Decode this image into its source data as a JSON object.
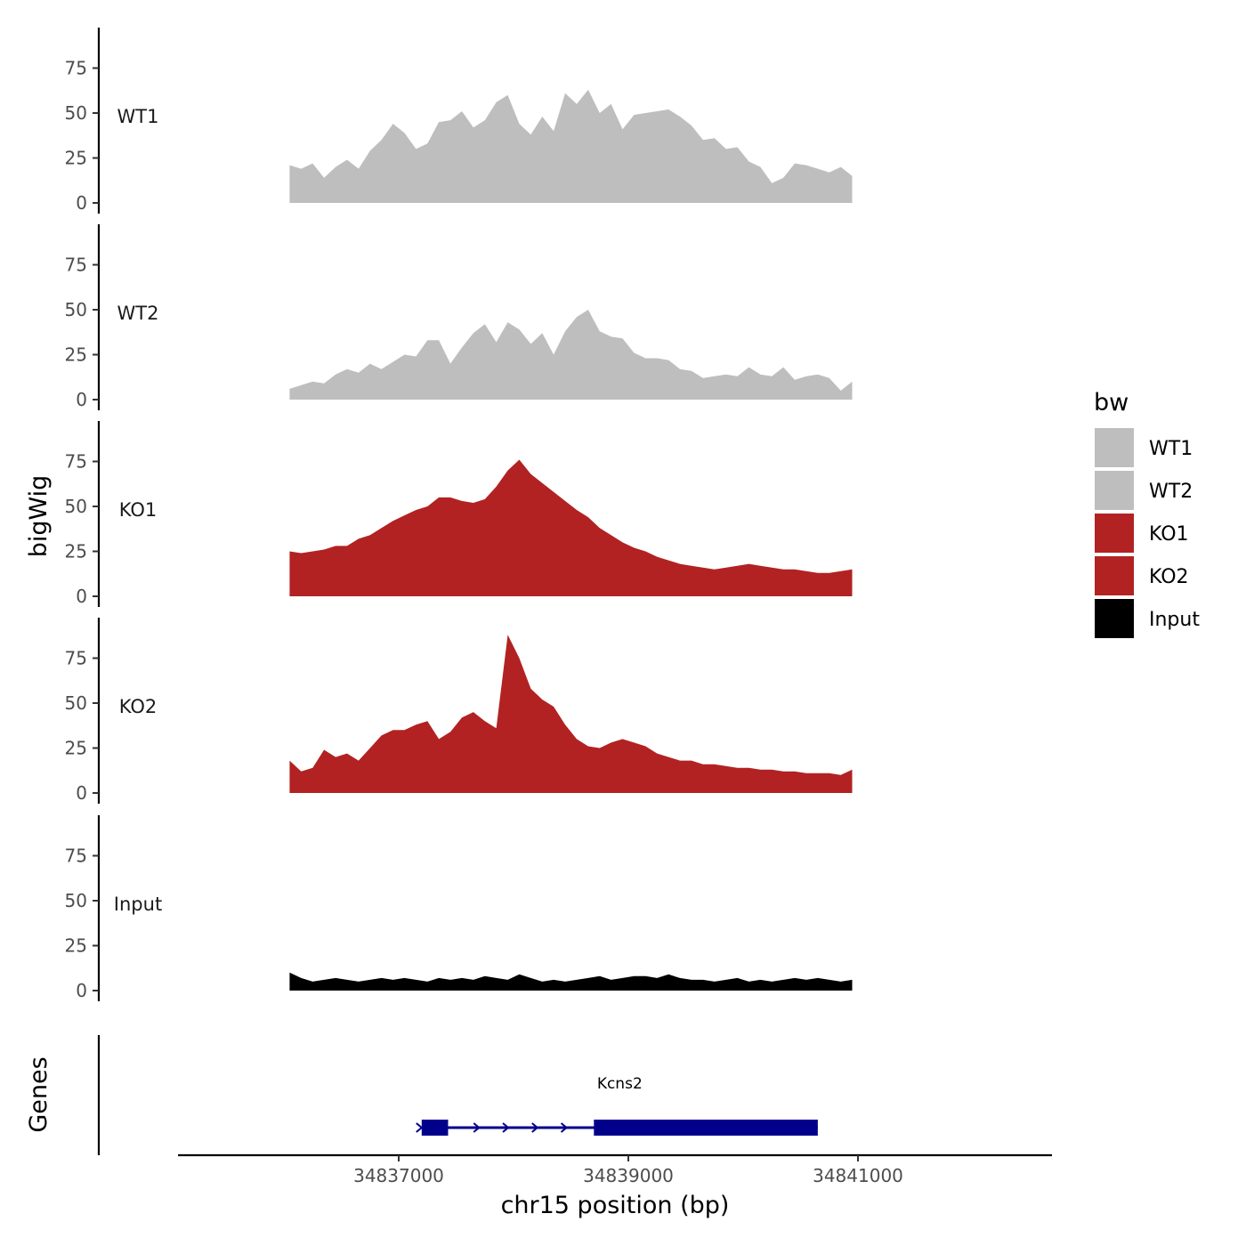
{
  "chart_data": {
    "type": "area",
    "ylabel": "bigWig",
    "xlabel": "chr15 position (bp)",
    "chromosome": "chr15",
    "xlim": [
      34835000,
      34842500
    ],
    "x_ticks": [
      34837000,
      34839000,
      34841000
    ],
    "x_tick_labels": [
      "34837000",
      "34839000",
      "34841000"
    ],
    "ylim": [
      0,
      95
    ],
    "y_ticks": [
      0,
      25,
      50,
      75
    ],
    "y_tick_labels": [
      "0",
      "25",
      "50",
      "75"
    ],
    "x_start": 34836050,
    "x_step": 100,
    "series": [
      {
        "name": "WT1",
        "color": "#BEBEBE",
        "values": [
          21,
          19,
          22,
          14,
          20,
          24,
          19,
          29,
          35,
          44,
          39,
          30,
          33,
          45,
          46,
          51,
          42,
          46,
          56,
          60,
          44,
          38,
          48,
          40,
          61,
          55,
          63,
          50,
          55,
          41,
          49,
          50,
          51,
          52,
          48,
          43,
          35,
          36,
          30,
          31,
          23,
          20,
          11,
          14,
          22,
          21,
          19,
          17,
          20,
          15
        ]
      },
      {
        "name": "WT2",
        "color": "#BEBEBE",
        "values": [
          6,
          8,
          10,
          9,
          14,
          17,
          15,
          20,
          17,
          21,
          25,
          24,
          33,
          33,
          20,
          29,
          37,
          42,
          32,
          43,
          39,
          31,
          37,
          25,
          38,
          46,
          50,
          38,
          35,
          34,
          26,
          23,
          23,
          22,
          17,
          16,
          12,
          13,
          14,
          13,
          18,
          14,
          13,
          18,
          11,
          13,
          14,
          12,
          5,
          10
        ]
      },
      {
        "name": "KO1",
        "color": "#B22222",
        "values": [
          25,
          24,
          25,
          26,
          28,
          28,
          32,
          34,
          38,
          42,
          45,
          48,
          50,
          55,
          55,
          53,
          52,
          54,
          61,
          70,
          76,
          68,
          63,
          58,
          53,
          48,
          44,
          38,
          34,
          30,
          27,
          25,
          22,
          20,
          18,
          17,
          16,
          15,
          16,
          17,
          18,
          17,
          16,
          15,
          15,
          14,
          13,
          13,
          14,
          15
        ]
      },
      {
        "name": "KO2",
        "color": "#B22222",
        "values": [
          18,
          12,
          14,
          24,
          20,
          22,
          18,
          25,
          32,
          35,
          35,
          38,
          40,
          30,
          34,
          42,
          45,
          40,
          36,
          88,
          75,
          58,
          52,
          48,
          38,
          30,
          26,
          25,
          28,
          30,
          28,
          26,
          22,
          20,
          18,
          18,
          16,
          16,
          15,
          14,
          14,
          13,
          13,
          12,
          12,
          11,
          11,
          11,
          10,
          13
        ]
      },
      {
        "name": "Input",
        "color": "#000000",
        "values": [
          10,
          7,
          5,
          6,
          7,
          6,
          5,
          6,
          7,
          6,
          7,
          6,
          5,
          7,
          6,
          7,
          6,
          8,
          7,
          6,
          9,
          7,
          5,
          6,
          5,
          6,
          7,
          8,
          6,
          7,
          8,
          8,
          7,
          9,
          7,
          6,
          6,
          5,
          6,
          7,
          5,
          6,
          5,
          6,
          7,
          6,
          7,
          6,
          5,
          6
        ]
      }
    ],
    "legend": {
      "title": "bw",
      "position": "right",
      "entries": [
        {
          "label": "WT1",
          "color": "#BEBEBE"
        },
        {
          "label": "WT2",
          "color": "#BEBEBE"
        },
        {
          "label": "KO1",
          "color": "#B22222"
        },
        {
          "label": "KO2",
          "color": "#B22222"
        },
        {
          "label": "Input",
          "color": "#000000"
        }
      ]
    },
    "gene_track": {
      "label": "Genes",
      "color": "#00008B",
      "gene": {
        "name": "Kcns2",
        "start": 34837200,
        "end": 34840650,
        "strand": "+",
        "exons": [
          [
            34837200,
            34837430
          ],
          [
            34838700,
            34840650
          ]
        ]
      }
    }
  }
}
